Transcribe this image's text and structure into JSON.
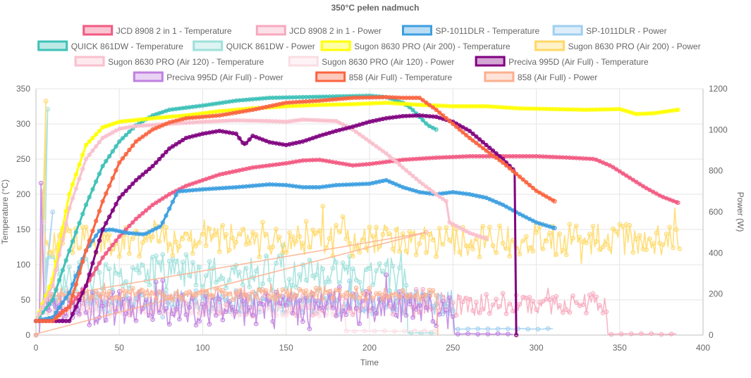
{
  "chart_data": {
    "type": "line",
    "title": "350°C pełen nadmuch",
    "xlabel": "Time",
    "ylabel": "Temperature (°C)",
    "y2label": "Power (W)",
    "xlim": [
      0,
      400
    ],
    "ylim": [
      0,
      350
    ],
    "y2lim": [
      0,
      1200
    ],
    "x_ticks": [
      0,
      50,
      100,
      150,
      200,
      250,
      300,
      350,
      400
    ],
    "y_ticks": [
      0,
      50,
      100,
      150,
      200,
      250,
      300,
      350
    ],
    "y2_ticks": [
      0,
      200,
      400,
      600,
      800,
      1000,
      1200
    ],
    "grid": true,
    "legend_position": "top",
    "series": [
      {
        "name": "JCD 8908 2 in 1 - Temperature",
        "axis": "left",
        "color": "#f25a82",
        "kind": "temp",
        "points": [
          [
            0,
            20
          ],
          [
            5,
            20
          ],
          [
            10,
            25
          ],
          [
            20,
            40
          ],
          [
            30,
            70
          ],
          [
            40,
            110
          ],
          [
            50,
            140
          ],
          [
            60,
            165
          ],
          [
            70,
            185
          ],
          [
            80,
            200
          ],
          [
            90,
            212
          ],
          [
            100,
            220
          ],
          [
            110,
            228
          ],
          [
            120,
            233
          ],
          [
            130,
            238
          ],
          [
            140,
            241
          ],
          [
            150,
            244
          ],
          [
            160,
            248
          ],
          [
            170,
            249
          ],
          [
            180,
            245
          ],
          [
            185,
            243
          ],
          [
            190,
            241
          ],
          [
            200,
            243
          ],
          [
            210,
            246
          ],
          [
            220,
            249
          ],
          [
            240,
            252
          ],
          [
            260,
            254
          ],
          [
            280,
            254
          ],
          [
            300,
            254
          ],
          [
            320,
            252
          ],
          [
            335,
            250
          ],
          [
            345,
            240
          ],
          [
            355,
            225
          ],
          [
            365,
            210
          ],
          [
            375,
            197
          ],
          [
            385,
            188
          ]
        ]
      },
      {
        "name": "JCD 8908 2 in 1 - Power",
        "axis": "right",
        "color": "#f7a9bd",
        "kind": "power-noisy",
        "base": 150,
        "amp": 55,
        "start": 3,
        "end": 342,
        "spike_x": 4,
        "spike_y": 700,
        "end_val": 5,
        "stop": 385
      },
      {
        "name": "SP-1011DLR - Temperature",
        "axis": "left",
        "color": "#3d9fe0",
        "kind": "temp",
        "points": [
          [
            0,
            20
          ],
          [
            10,
            25
          ],
          [
            20,
            60
          ],
          [
            30,
            120
          ],
          [
            38,
            148
          ],
          [
            45,
            150
          ],
          [
            55,
            145
          ],
          [
            65,
            143
          ],
          [
            75,
            155
          ],
          [
            85,
            204
          ],
          [
            100,
            207
          ],
          [
            120,
            210
          ],
          [
            140,
            214
          ],
          [
            150,
            213
          ],
          [
            160,
            210
          ],
          [
            170,
            210
          ],
          [
            180,
            213
          ],
          [
            200,
            215
          ],
          [
            210,
            220
          ],
          [
            220,
            210
          ],
          [
            230,
            203
          ],
          [
            240,
            200
          ],
          [
            250,
            203
          ],
          [
            260,
            200
          ],
          [
            270,
            195
          ],
          [
            280,
            185
          ],
          [
            290,
            172
          ],
          [
            300,
            160
          ],
          [
            311,
            152
          ]
        ]
      },
      {
        "name": "SP-1011DLR - Power",
        "axis": "right",
        "color": "#9fcff0",
        "kind": "power-noisy",
        "base": 160,
        "amp": 60,
        "start": 3,
        "end": 250,
        "spike_x": 10,
        "spike_y": 600,
        "end_val": 30,
        "stop": 311
      },
      {
        "name": "QUICK 861DW - Temperature",
        "axis": "left",
        "color": "#3ec1b8",
        "kind": "temp",
        "points": [
          [
            0,
            20
          ],
          [
            10,
            50
          ],
          [
            20,
            120
          ],
          [
            30,
            185
          ],
          [
            40,
            240
          ],
          [
            50,
            275
          ],
          [
            60,
            298
          ],
          [
            70,
            312
          ],
          [
            80,
            320
          ],
          [
            100,
            326
          ],
          [
            120,
            333
          ],
          [
            140,
            337
          ],
          [
            160,
            338
          ],
          [
            180,
            339
          ],
          [
            200,
            340
          ],
          [
            210,
            338
          ],
          [
            220,
            330
          ],
          [
            225,
            322
          ],
          [
            230,
            310
          ],
          [
            235,
            298
          ],
          [
            240,
            292
          ]
        ]
      },
      {
        "name": "QUICK 861DW - Power",
        "axis": "right",
        "color": "#9ee0db",
        "kind": "power-noisy",
        "base": 300,
        "amp": 90,
        "start": 3,
        "end": 222,
        "spike_x": 7,
        "spike_y": 1100,
        "end_val": 10,
        "stop": 240
      },
      {
        "name": "Sugon 8630 PRO (Air 200) - Temperature",
        "axis": "left",
        "color": "#ffff00",
        "kind": "temp",
        "points": [
          [
            0,
            20
          ],
          [
            10,
            80
          ],
          [
            20,
            200
          ],
          [
            30,
            270
          ],
          [
            40,
            295
          ],
          [
            50,
            303
          ],
          [
            70,
            308
          ],
          [
            90,
            312
          ],
          [
            110,
            318
          ],
          [
            130,
            322
          ],
          [
            150,
            325
          ],
          [
            170,
            327
          ],
          [
            190,
            328
          ],
          [
            210,
            330
          ],
          [
            230,
            327
          ],
          [
            250,
            325
          ],
          [
            270,
            325
          ],
          [
            290,
            322
          ],
          [
            310,
            321
          ],
          [
            330,
            320
          ],
          [
            350,
            321
          ],
          [
            360,
            314
          ],
          [
            370,
            315
          ],
          [
            385,
            320
          ]
        ]
      },
      {
        "name": "Sugon 8630 PRO (Air 200) - Power",
        "axis": "right",
        "color": "#ffd966",
        "kind": "power-noisy",
        "base": 460,
        "amp": 80,
        "start": 3,
        "end": 385,
        "spike_x": 6,
        "spike_y": 1140,
        "end_val": 420,
        "stop": 385
      },
      {
        "name": "Sugon 8630 PRO (Air 120) - Temperature",
        "axis": "left",
        "color": "#f9c0cd",
        "kind": "temp",
        "points": [
          [
            0,
            20
          ],
          [
            10,
            70
          ],
          [
            20,
            180
          ],
          [
            30,
            250
          ],
          [
            40,
            280
          ],
          [
            50,
            293
          ],
          [
            60,
            297
          ],
          [
            80,
            300
          ],
          [
            100,
            303
          ],
          [
            120,
            305
          ],
          [
            140,
            304
          ],
          [
            150,
            303
          ],
          [
            160,
            306
          ],
          [
            180,
            304
          ],
          [
            190,
            292
          ],
          [
            200,
            275
          ],
          [
            210,
            258
          ],
          [
            220,
            238
          ],
          [
            230,
            218
          ],
          [
            240,
            200
          ],
          [
            246,
            190
          ],
          [
            248,
            160
          ],
          [
            260,
            145
          ],
          [
            270,
            137
          ]
        ]
      },
      {
        "name": "Sugon 8630 PRO (Air 120) - Power",
        "axis": "right",
        "color": "#fbdde4",
        "kind": "power-noisy",
        "base": 120,
        "amp": 30,
        "start": 3,
        "end": 185,
        "spike_x": 5,
        "spike_y": 550,
        "end_val": 20,
        "stop": 240
      },
      {
        "name": "Preciva 995D (Air Full) - Temperature",
        "axis": "left",
        "color": "#800080",
        "kind": "temp",
        "points": [
          [
            0,
            20
          ],
          [
            10,
            20
          ],
          [
            20,
            20
          ],
          [
            30,
            70
          ],
          [
            40,
            150
          ],
          [
            50,
            195
          ],
          [
            60,
            220
          ],
          [
            70,
            240
          ],
          [
            80,
            265
          ],
          [
            90,
            280
          ],
          [
            100,
            286
          ],
          [
            110,
            290
          ],
          [
            120,
            286
          ],
          [
            125,
            270
          ],
          [
            130,
            283
          ],
          [
            140,
            274
          ],
          [
            150,
            270
          ],
          [
            160,
            275
          ],
          [
            170,
            283
          ],
          [
            180,
            290
          ],
          [
            190,
            296
          ],
          [
            200,
            303
          ],
          [
            210,
            308
          ],
          [
            220,
            311
          ],
          [
            230,
            312
          ],
          [
            240,
            310
          ],
          [
            250,
            303
          ],
          [
            260,
            290
          ],
          [
            270,
            270
          ],
          [
            280,
            250
          ],
          [
            287,
            233
          ],
          [
            288,
            0
          ]
        ]
      },
      {
        "name": "Preciva 995D (Air Full) - Power",
        "axis": "right",
        "color": "#c080e0",
        "kind": "power-noisy",
        "base": 130,
        "amp": 85,
        "start": 3,
        "end": 250,
        "spike_x": 3,
        "spike_y": 740,
        "end_val": 5,
        "stop": 288
      },
      {
        "name": "858 (Air Full) - Temperature",
        "axis": "left",
        "color": "#fa6440",
        "kind": "temp",
        "points": [
          [
            0,
            20
          ],
          [
            10,
            20
          ],
          [
            20,
            40
          ],
          [
            30,
            120
          ],
          [
            40,
            190
          ],
          [
            50,
            245
          ],
          [
            60,
            275
          ],
          [
            70,
            292
          ],
          [
            80,
            302
          ],
          [
            90,
            308
          ],
          [
            110,
            312
          ],
          [
            130,
            320
          ],
          [
            150,
            330
          ],
          [
            170,
            333
          ],
          [
            190,
            337
          ],
          [
            210,
            338
          ],
          [
            220,
            337
          ],
          [
            230,
            337
          ],
          [
            240,
            320
          ],
          [
            250,
            300
          ],
          [
            260,
            280
          ],
          [
            270,
            262
          ],
          [
            280,
            245
          ],
          [
            290,
            225
          ],
          [
            300,
            205
          ],
          [
            311,
            190
          ]
        ]
      },
      {
        "name": "858 (Air Full) - Power",
        "axis": "right",
        "color": "#fbb08e",
        "kind": "power-noisy",
        "base": 200,
        "amp": 30,
        "start": 3,
        "end": 240,
        "spike_x": 234,
        "spike_y": 500,
        "end_val": 0,
        "stop": 240
      }
    ]
  }
}
